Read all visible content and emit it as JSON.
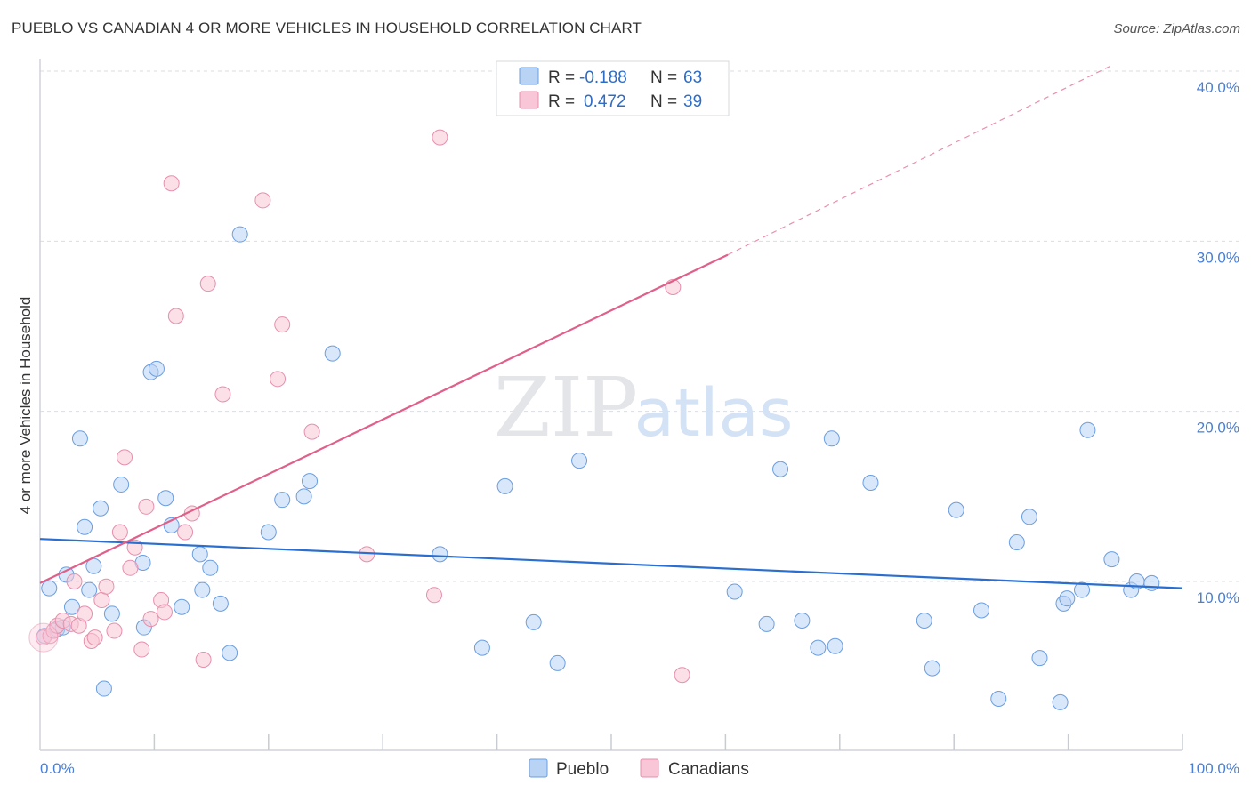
{
  "title": "PUEBLO VS CANADIAN 4 OR MORE VEHICLES IN HOUSEHOLD CORRELATION CHART",
  "source": "Source: ZipAtlas.com",
  "watermark": {
    "zip": "ZIP",
    "atlas": "atlas"
  },
  "colors": {
    "pueblo_fill": "#b9d3f5",
    "pueblo_stroke": "#6a9ee0",
    "pueblo_line": "#2a6fcf",
    "canadians_fill": "#f8c6d6",
    "canadians_stroke": "#e68fac",
    "canadians_line": "#e0608a",
    "grid": "#d9dde3",
    "axis_text": "#4a7fd4"
  },
  "legend": {
    "rows": [
      {
        "r_label": "R = ",
        "r_value": "-0.188",
        "n_label": "N = ",
        "n_value": "63"
      },
      {
        "r_label": "R = ",
        "r_value": "0.472",
        "n_label": "N = ",
        "n_value": "39"
      }
    ]
  },
  "chart_data": {
    "type": "scatter",
    "xlabel": "",
    "ylabel": "4 or more Vehicles in Household",
    "xlim": [
      0,
      100
    ],
    "ylim": [
      0,
      41
    ],
    "x_tick_labels": [
      "0.0%",
      "100.0%"
    ],
    "y_ticks": [
      10,
      20,
      30,
      40
    ],
    "y_tick_labels": [
      "10.0%",
      "20.0%",
      "30.0%",
      "40.0%"
    ],
    "grid": true,
    "legend_position": "top-center",
    "series": [
      {
        "name": "Pueblo",
        "trend": {
          "x0": 0,
          "y0": 12.5,
          "x1": 100,
          "y1": 9.6,
          "dashed_from": null
        },
        "points": [
          [
            0.8,
            9.6
          ],
          [
            1.5,
            7.2
          ],
          [
            2,
            7.3
          ],
          [
            2.3,
            10.4
          ],
          [
            2.8,
            8.5
          ],
          [
            3.5,
            18.4
          ],
          [
            3.9,
            13.2
          ],
          [
            4.3,
            9.5
          ],
          [
            4.7,
            10.9
          ],
          [
            5.3,
            14.3
          ],
          [
            5.6,
            3.7
          ],
          [
            6.3,
            8.1
          ],
          [
            7.1,
            15.7
          ],
          [
            9,
            11.1
          ],
          [
            9.1,
            7.3
          ],
          [
            9.7,
            22.3
          ],
          [
            10.2,
            22.5
          ],
          [
            11,
            14.9
          ],
          [
            11.5,
            13.3
          ],
          [
            12.4,
            8.5
          ],
          [
            14,
            11.6
          ],
          [
            14.2,
            9.5
          ],
          [
            14.9,
            10.8
          ],
          [
            15.8,
            8.7
          ],
          [
            16.6,
            5.8
          ],
          [
            17.5,
            30.4
          ],
          [
            20,
            12.9
          ],
          [
            21.2,
            14.8
          ],
          [
            23.1,
            15
          ],
          [
            23.6,
            15.9
          ],
          [
            25.6,
            23.4
          ],
          [
            35,
            11.6
          ],
          [
            38.7,
            6.1
          ],
          [
            40.7,
            15.6
          ],
          [
            43.2,
            7.6
          ],
          [
            45.3,
            5.2
          ],
          [
            47.2,
            17.1
          ],
          [
            60.8,
            9.4
          ],
          [
            63.6,
            7.5
          ],
          [
            64.8,
            16.6
          ],
          [
            66.7,
            7.7
          ],
          [
            68.1,
            6.1
          ],
          [
            69.3,
            18.4
          ],
          [
            69.6,
            6.2
          ],
          [
            72.7,
            15.8
          ],
          [
            77.4,
            7.7
          ],
          [
            78.1,
            4.9
          ],
          [
            80.2,
            14.2
          ],
          [
            82.4,
            8.3
          ],
          [
            83.9,
            3.1
          ],
          [
            85.5,
            12.3
          ],
          [
            86.6,
            13.8
          ],
          [
            87.5,
            5.5
          ],
          [
            89.3,
            2.9
          ],
          [
            89.6,
            8.7
          ],
          [
            89.9,
            9
          ],
          [
            91.2,
            9.5
          ],
          [
            91.7,
            18.9
          ],
          [
            93.8,
            11.3
          ],
          [
            95.5,
            9.5
          ],
          [
            96,
            10
          ],
          [
            97.3,
            9.9
          ],
          [
            0.4,
            6.8
          ]
        ]
      },
      {
        "name": "Canadians",
        "trend": {
          "x0": 0,
          "y0": 9.9,
          "x1": 60.2,
          "y1": 29.2,
          "x2": 94,
          "y2": 40.4
        },
        "points": [
          [
            0.3,
            6.7
          ],
          [
            0.9,
            6.8
          ],
          [
            1.2,
            7.1
          ],
          [
            1.5,
            7.4
          ],
          [
            2,
            7.7
          ],
          [
            2.7,
            7.5
          ],
          [
            3,
            10
          ],
          [
            3.4,
            7.4
          ],
          [
            3.9,
            8.1
          ],
          [
            4.5,
            6.5
          ],
          [
            4.8,
            6.7
          ],
          [
            5.4,
            8.9
          ],
          [
            5.8,
            9.7
          ],
          [
            6.5,
            7.1
          ],
          [
            7,
            12.9
          ],
          [
            7.4,
            17.3
          ],
          [
            7.9,
            10.8
          ],
          [
            8.3,
            12
          ],
          [
            8.9,
            6
          ],
          [
            9.3,
            14.4
          ],
          [
            9.7,
            7.8
          ],
          [
            10.6,
            8.9
          ],
          [
            10.9,
            8.2
          ],
          [
            11.5,
            33.4
          ],
          [
            11.9,
            25.6
          ],
          [
            12.7,
            12.9
          ],
          [
            13.3,
            14
          ],
          [
            14.3,
            5.4
          ],
          [
            14.7,
            27.5
          ],
          [
            16,
            21
          ],
          [
            19.5,
            32.4
          ],
          [
            20.8,
            21.9
          ],
          [
            21.2,
            25.1
          ],
          [
            23.8,
            18.8
          ],
          [
            28.6,
            11.6
          ],
          [
            34.5,
            9.2
          ],
          [
            35,
            36.1
          ],
          [
            55.4,
            27.3
          ],
          [
            56.2,
            4.5
          ]
        ]
      }
    ]
  },
  "bottom_legend": {
    "items": [
      "Pueblo",
      "Canadians"
    ]
  }
}
